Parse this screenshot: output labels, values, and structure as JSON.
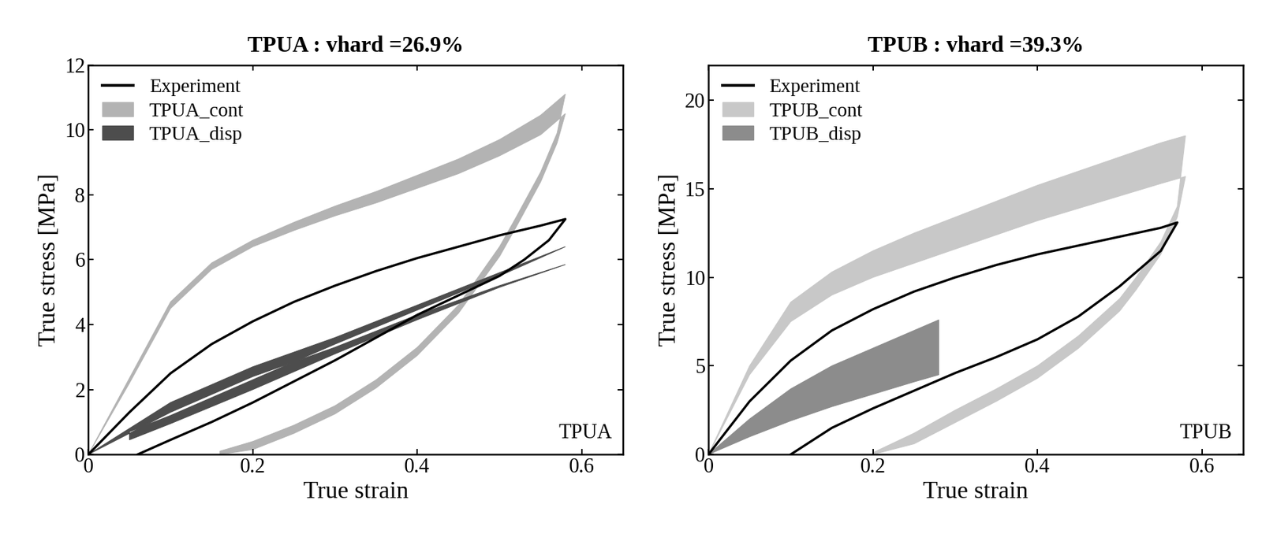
{
  "chart_data": [
    {
      "type": "line",
      "title": "TPUA : vhard =26.9%",
      "x_label": "True strain",
      "y_label": "True stress [MPa]",
      "annotation": "TPUA",
      "xlim": [
        0,
        0.65
      ],
      "xticks": [
        0,
        0.2,
        0.4,
        0.6
      ],
      "ylim": [
        0,
        12
      ],
      "yticks": [
        0,
        2,
        4,
        6,
        8,
        10,
        12
      ],
      "legend": "upper left",
      "series": [
        {
          "name": "Experiment",
          "type": "line",
          "color": "#000000",
          "x": [
            0,
            0.05,
            0.1,
            0.15,
            0.2,
            0.25,
            0.3,
            0.35,
            0.4,
            0.45,
            0.5,
            0.55,
            0.58,
            0.56,
            0.53,
            0.5,
            0.45,
            0.4,
            0.35,
            0.3,
            0.25,
            0.2,
            0.15,
            0.1,
            0.06
          ],
          "values": [
            0,
            1.3,
            2.5,
            3.4,
            4.1,
            4.7,
            5.2,
            5.65,
            6.05,
            6.4,
            6.75,
            7.05,
            7.25,
            6.6,
            6.0,
            5.5,
            4.9,
            4.3,
            3.6,
            2.9,
            2.25,
            1.6,
            1.0,
            0.45,
            0
          ]
        },
        {
          "name": "TPUA_cont",
          "type": "band",
          "color": "#b3b3b3",
          "x": [
            0,
            0.05,
            0.1,
            0.15,
            0.2,
            0.25,
            0.3,
            0.35,
            0.4,
            0.45,
            0.5,
            0.55,
            0.58,
            0.57,
            0.55,
            0.52,
            0.5,
            0.45,
            0.4,
            0.35,
            0.3,
            0.25,
            0.2,
            0.16
          ],
          "values": [
            0,
            2.2,
            4.5,
            5.7,
            6.4,
            6.9,
            7.35,
            7.75,
            8.2,
            8.65,
            9.2,
            9.85,
            10.5,
            9.6,
            8.4,
            7.0,
            6.1,
            4.35,
            3.05,
            2.05,
            1.25,
            0.65,
            0.15,
            0
          ],
          "upper": [
            0,
            2.35,
            4.7,
            5.9,
            6.6,
            7.15,
            7.65,
            8.1,
            8.6,
            9.1,
            9.7,
            10.45,
            11.1,
            9.9,
            8.7,
            7.3,
            6.4,
            4.6,
            3.3,
            2.3,
            1.5,
            0.9,
            0.4,
            0.1
          ]
        },
        {
          "name": "TPUA_disp",
          "type": "band",
          "color": "#4d4d4d",
          "x": [
            0,
            0.1,
            0.2,
            0.3,
            0.4,
            0.5,
            0.58,
            0.5,
            0.4,
            0.3,
            0.2,
            0.1,
            0.05
          ],
          "values": [
            0,
            1.3,
            2.4,
            3.3,
            4.3,
            5.2,
            5.85,
            5.15,
            4.15,
            3.1,
            2.0,
            0.95,
            0.45
          ],
          "upper": [
            0,
            1.6,
            2.7,
            3.6,
            4.6,
            5.6,
            6.4,
            5.5,
            4.45,
            3.4,
            2.3,
            1.2,
            0.7
          ]
        }
      ]
    },
    {
      "type": "line",
      "title": "TPUB : vhard =39.3%",
      "x_label": "True strain",
      "y_label": "True stress [MPa]",
      "annotation": "TPUB",
      "xlim": [
        0,
        0.65
      ],
      "xticks": [
        0,
        0.2,
        0.4,
        0.6
      ],
      "ylim": [
        0,
        22
      ],
      "yticks": [
        0,
        5,
        10,
        15,
        20
      ],
      "legend": "upper left",
      "series": [
        {
          "name": "Experiment",
          "type": "line",
          "color": "#000000",
          "x": [
            0,
            0.05,
            0.1,
            0.15,
            0.2,
            0.25,
            0.3,
            0.35,
            0.4,
            0.45,
            0.5,
            0.55,
            0.57,
            0.55,
            0.5,
            0.45,
            0.4,
            0.35,
            0.3,
            0.25,
            0.2,
            0.15,
            0.1
          ],
          "values": [
            0,
            3.0,
            5.3,
            7.0,
            8.2,
            9.2,
            10.0,
            10.7,
            11.3,
            11.8,
            12.3,
            12.8,
            13.1,
            11.5,
            9.5,
            7.8,
            6.5,
            5.5,
            4.6,
            3.6,
            2.6,
            1.5,
            0
          ]
        },
        {
          "name": "TPUB_cont",
          "type": "band",
          "color": "#c8c8c8",
          "x": [
            0,
            0.05,
            0.1,
            0.15,
            0.2,
            0.25,
            0.3,
            0.35,
            0.4,
            0.45,
            0.5,
            0.55,
            0.58,
            0.57,
            0.55,
            0.52,
            0.5,
            0.45,
            0.4,
            0.35,
            0.3,
            0.25,
            0.2
          ],
          "values": [
            0,
            4.5,
            7.5,
            9.0,
            10.0,
            10.8,
            11.6,
            12.4,
            13.2,
            13.9,
            14.6,
            15.3,
            15.7,
            13.4,
            11.3,
            9.3,
            8.1,
            6.0,
            4.3,
            3.0,
            1.8,
            0.6,
            0
          ],
          "upper": [
            0,
            5.0,
            8.6,
            10.3,
            11.5,
            12.5,
            13.4,
            14.3,
            15.2,
            16.0,
            16.8,
            17.6,
            18.0,
            14.0,
            12.0,
            10.0,
            8.8,
            6.7,
            5.0,
            3.7,
            2.5,
            1.2,
            0.1
          ]
        },
        {
          "name": "TPUB_disp",
          "type": "band",
          "color": "#8c8c8c",
          "x": [
            0,
            0.05,
            0.1,
            0.15,
            0.2,
            0.25,
            0.28
          ],
          "values": [
            0,
            1.0,
            1.9,
            2.7,
            3.4,
            4.1,
            4.5
          ],
          "upper": [
            0,
            2.0,
            3.7,
            5.0,
            6.0,
            7.0,
            7.6
          ]
        }
      ]
    }
  ]
}
